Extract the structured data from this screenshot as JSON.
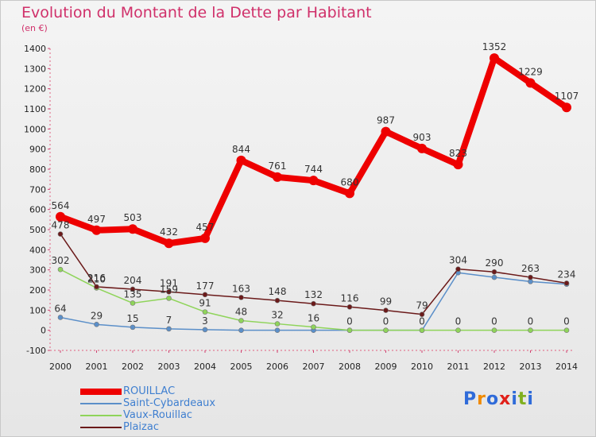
{
  "title": "Evolution du Montant de la Dette par Habitant",
  "subtitle": "(en €)",
  "logo": {
    "text": "Proxiti",
    "colors": [
      "#2f6bd9",
      "#f08a00",
      "#2f6bd9",
      "#e0201a",
      "#2f6bd9",
      "#80b020",
      "#2f6bd9"
    ]
  },
  "chart_data": {
    "type": "line",
    "x": [
      "2000",
      "2001",
      "2002",
      "2003",
      "2004",
      "2005",
      "2006",
      "2007",
      "2008",
      "2009",
      "2010",
      "2011",
      "2012",
      "2013",
      "2014"
    ],
    "ylim": [
      -100,
      1400
    ],
    "yticks": [
      -100,
      0,
      100,
      200,
      300,
      400,
      500,
      600,
      700,
      800,
      900,
      1000,
      1100,
      1200,
      1300,
      1400
    ],
    "grid": false,
    "legend": "bottom-left",
    "series": [
      {
        "name": "Saint-Cybardeaux",
        "color": "#5b8fc9",
        "values": [
          64,
          29,
          15,
          7,
          3,
          0,
          0,
          0,
          0,
          0,
          0,
          286,
          263,
          242,
          229
        ],
        "labels": [
          "64",
          "29",
          "15",
          "7",
          "3",
          "",
          "",
          "",
          "",
          "",
          "",
          "",
          "",
          "",
          ""
        ]
      },
      {
        "name": "Vaux-Rouillac",
        "color": "#8fd45a",
        "values": [
          302,
          210,
          135,
          159,
          91,
          48,
          32,
          16,
          0,
          0,
          0,
          0,
          0,
          0,
          0
        ],
        "labels": [
          "302",
          "210",
          "135",
          "159",
          "91",
          "48",
          "32",
          "16",
          "0",
          "0",
          "0",
          "0",
          "0",
          "0",
          "0"
        ]
      },
      {
        "name": "Plaizac",
        "color": "#6b1a1a",
        "values": [
          478,
          216,
          204,
          191,
          177,
          163,
          148,
          132,
          116,
          99,
          79,
          304,
          290,
          263,
          234
        ],
        "labels": [
          "478",
          "216",
          "204",
          "191",
          "177",
          "163",
          "148",
          "132",
          "116",
          "99",
          "79",
          "304",
          "290",
          "263",
          "234"
        ]
      },
      {
        "name": "ROUILLAC",
        "color": "#ee0000",
        "values": [
          564,
          497,
          503,
          432,
          457,
          844,
          761,
          744,
          680,
          987,
          903,
          823,
          1352,
          1229,
          1107
        ],
        "labels": [
          "564",
          "497",
          "503",
          "432",
          "457",
          "844",
          "761",
          "744",
          "680",
          "987",
          "903",
          "823",
          "1352",
          "1229",
          "1107"
        ]
      }
    ]
  }
}
